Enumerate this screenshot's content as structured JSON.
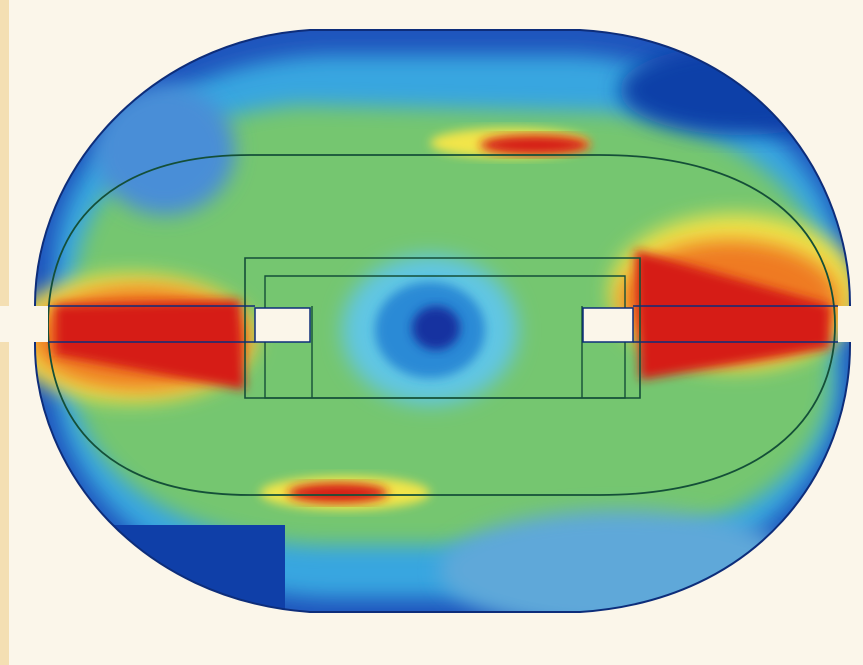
{
  "figure": {
    "kind": "simulation-contour-plot",
    "background_color": "#fbf6ea",
    "border_color": "#f4dfb3",
    "colormap": [
      "#0f3fa8",
      "#2b8ad6",
      "#63c9e3",
      "#79cc73",
      "#f2e54a",
      "#ef7a22",
      "#d61f16"
    ]
  }
}
